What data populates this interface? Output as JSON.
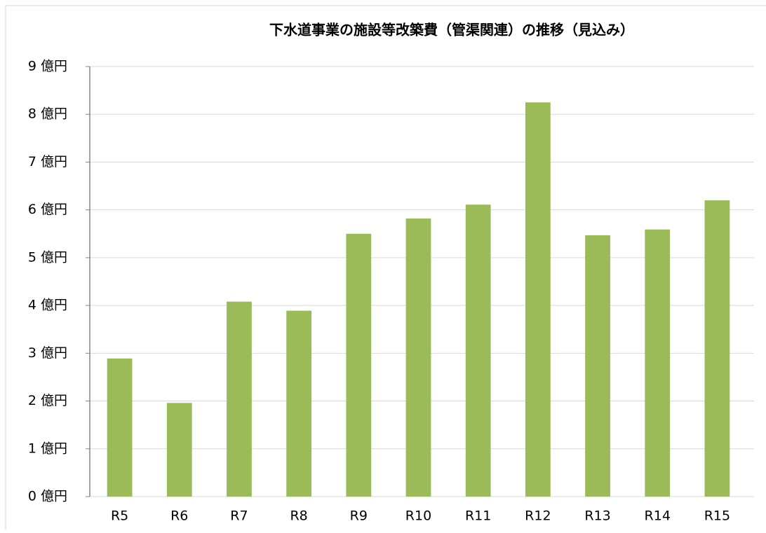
{
  "chart_data": {
    "type": "bar",
    "title": "下水道事業の施設等改築費（管渠関連）の推移（見込み）",
    "categories": [
      "R5",
      "R6",
      "R7",
      "R8",
      "R9",
      "R10",
      "R11",
      "R12",
      "R13",
      "R14",
      "R15"
    ],
    "values": [
      2.89,
      1.96,
      4.08,
      3.89,
      5.5,
      5.82,
      6.11,
      8.25,
      5.47,
      5.59,
      6.2
    ],
    "color": "#9bbb59",
    "ylim": [
      0,
      9
    ],
    "yticks": [
      {
        "value": 0,
        "label": "0 億円"
      },
      {
        "value": 1,
        "label": "1 億円"
      },
      {
        "value": 2,
        "label": "2 億円"
      },
      {
        "value": 3,
        "label": "3 億円"
      },
      {
        "value": 4,
        "label": "4 億円"
      },
      {
        "value": 5,
        "label": "5 億円"
      },
      {
        "value": 6,
        "label": "6 億円"
      },
      {
        "value": 7,
        "label": "7 億円"
      },
      {
        "value": 8,
        "label": "8 億円"
      },
      {
        "value": 9,
        "label": "9 億円"
      }
    ],
    "grid": true
  }
}
